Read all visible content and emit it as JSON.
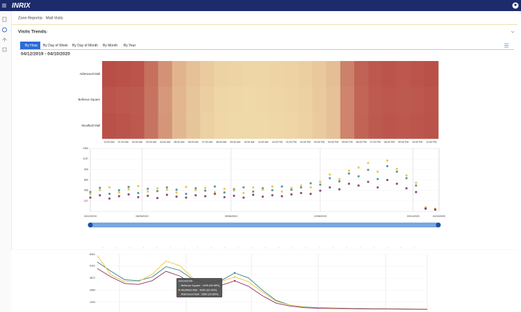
{
  "nav": {
    "logo": "INRIX"
  },
  "breadcrumb": [
    "Zone Reports",
    "Mall Visits"
  ],
  "section_title": "Visits Trends",
  "tabs": [
    "By Hour",
    "By Day of Week",
    "By Day of Month",
    "By Month",
    "By Year"
  ],
  "date_range": "04/12/2019 - 04/10/2020",
  "chart_data": [
    {
      "type": "heatmap",
      "rows": [
        "Alderwood Mall",
        "Bellevue Square",
        "Westfield Mall"
      ],
      "columns": [
        "12:00 AM",
        "01:00 AM",
        "02:00 AM",
        "03:00 AM",
        "04:00 AM",
        "05:00 AM",
        "06:00 AM",
        "07:00 AM",
        "08:00 AM",
        "09:00 AM",
        "10:00 AM",
        "11:00 AM",
        "12:00 PM",
        "01:00 PM",
        "02:00 PM",
        "03:00 PM",
        "04:00 PM",
        "05:00 PM",
        "06:00 PM",
        "07:00 PM",
        "08:00 PM",
        "09:00 PM",
        "10:00 PM",
        "11:00 PM"
      ],
      "values": [
        [
          92,
          90,
          88,
          72,
          52,
          32,
          24,
          18,
          14,
          13,
          12,
          12,
          13,
          14,
          16,
          20,
          26,
          62,
          80,
          86,
          88,
          86,
          88,
          90
        ],
        [
          88,
          86,
          85,
          70,
          48,
          30,
          22,
          16,
          12,
          11,
          10,
          11,
          12,
          13,
          15,
          19,
          24,
          60,
          78,
          84,
          86,
          85,
          86,
          88
        ],
        [
          90,
          88,
          86,
          70,
          50,
          30,
          22,
          15,
          11,
          10,
          10,
          10,
          11,
          12,
          14,
          18,
          24,
          60,
          79,
          85,
          87,
          86,
          87,
          89
        ]
      ],
      "zlim": [
        0,
        100
      ],
      "colors": [
        "#f6eab4",
        "#b3403d"
      ]
    },
    {
      "type": "scatter",
      "x": [
        "04/12/2019",
        "04/22/2019",
        "05/02/2019",
        "05/12/2019",
        "05/22/2019",
        "06/01/2019",
        "06/11/2019",
        "06/21/2019",
        "07/01/2019",
        "07/11/2019",
        "07/21/2019",
        "07/31/2019",
        "08/10/2019",
        "08/20/2019",
        "08/30/2019",
        "09/09/2019",
        "09/19/2019",
        "09/29/2019",
        "10/09/2019",
        "10/19/2019",
        "10/29/2019",
        "11/08/2019",
        "11/18/2019",
        "11/28/2019",
        "12/08/2019",
        "12/18/2019",
        "12/28/2019",
        "01/07/2020",
        "01/17/2020",
        "01/27/2020",
        "02/06/2020",
        "02/16/2020",
        "02/26/2020",
        "03/07/2020",
        "03/17/2020",
        "03/27/2020",
        "04/06/2020"
      ],
      "series": [
        {
          "color": "#3f8a8c",
          "values": [
            420,
            510,
            380,
            460,
            530,
            400,
            490,
            440,
            520,
            470,
            380,
            500,
            450,
            540,
            410,
            480,
            520,
            430,
            500,
            460,
            540,
            470,
            520,
            610,
            580,
            720,
            650,
            820,
            760,
            900,
            700,
            980,
            860,
            720,
            560,
            70,
            50
          ]
        },
        {
          "color": "#e6bf3c",
          "values": [
            380,
            460,
            520,
            410,
            480,
            550,
            430,
            500,
            470,
            410,
            530,
            460,
            510,
            420,
            490,
            450,
            400,
            520,
            470,
            540,
            430,
            510,
            560,
            520,
            640,
            800,
            700,
            880,
            950,
            1050,
            860,
            1100,
            920,
            780,
            620,
            90,
            60
          ]
        },
        {
          "color": "#7a3060",
          "values": [
            300,
            350,
            280,
            330,
            370,
            310,
            340,
            290,
            360,
            320,
            300,
            350,
            330,
            380,
            310,
            340,
            300,
            360,
            320,
            350,
            330,
            370,
            400,
            380,
            450,
            520,
            480,
            600,
            560,
            640,
            520,
            680,
            600,
            500,
            420,
            60,
            40
          ]
        }
      ],
      "xlim": [
        "04/12/2019",
        "04/10/2020"
      ],
      "xticks": [
        "04/12/2019",
        "06/05/2019",
        "09/06/2019",
        "12/08/2019",
        "03/14/2020",
        "04/10/2020"
      ],
      "ylim": [
        0,
        1364
      ],
      "yticks": [
        227,
        455,
        682,
        909,
        1137,
        1364
      ],
      "grid": true
    },
    {
      "type": "line",
      "categories": [
        null,
        null,
        null,
        null,
        null,
        null,
        null,
        null,
        null,
        null,
        null,
        null,
        null,
        null,
        null,
        null,
        null,
        null,
        null,
        null,
        null,
        null,
        null,
        null,
        null
      ],
      "series": [
        {
          "color": "#2f7d80",
          "values": [
            5600,
            4600,
            3700,
            3600,
            4000,
            5100,
            4700,
            3700,
            3300,
            3600,
            4425,
            3900,
            2600,
            1500,
            1000,
            800,
            720,
            680,
            650,
            620,
            600,
            600,
            580,
            560,
            560
          ]
        },
        {
          "color": "#f0c23b",
          "values": [
            6300,
            4200,
            3500,
            3500,
            4300,
            5700,
            5200,
            3800,
            3400,
            3500,
            3990,
            3500,
            2400,
            1400,
            1000,
            780,
            700,
            660,
            640,
            610,
            590,
            590,
            570,
            560,
            550
          ]
        },
        {
          "color": "#8a2d5a",
          "values": [
            4900,
            4000,
            3300,
            3200,
            3600,
            4600,
            4100,
            3200,
            2900,
            3100,
            3580,
            3000,
            2000,
            1200,
            900,
            720,
            660,
            630,
            610,
            590,
            570,
            570,
            560,
            540,
            530
          ]
        }
      ],
      "ylim": [
        400,
        6401
      ],
      "yticks": [
        1294,
        2583,
        3872,
        5161,
        6401
      ],
      "grid": true,
      "tooltip": {
        "title": "03/14/2020",
        "lines": [
          "Bellevue Square : 4425 (36.88%)",
          "Westfield Mall : 3990 (33.26%)",
          "Alderwood Mall : 3580 (29.86%)"
        ]
      }
    }
  ]
}
